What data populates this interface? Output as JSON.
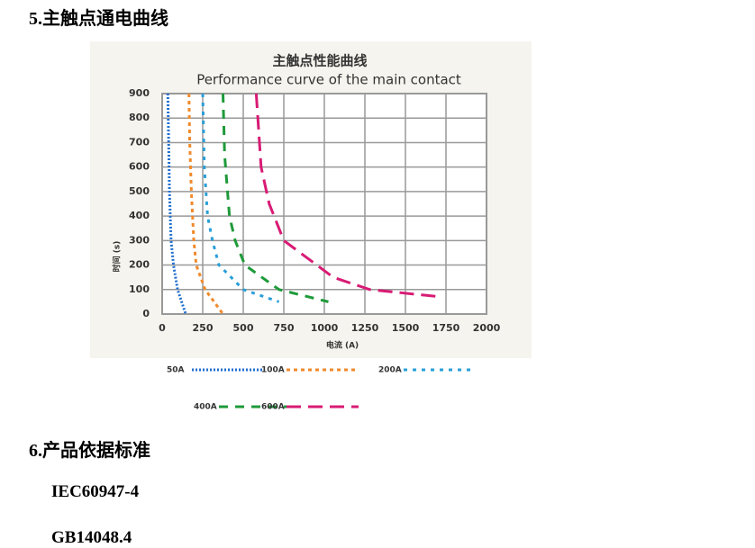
{
  "section5": {
    "heading": "5.主触点通电曲线"
  },
  "figure": {
    "type": "line",
    "title": "主触点性能曲线",
    "subtitle": "Performance curve of the main contact",
    "x_label": "电流 (A)",
    "y_label": "时间 (s)",
    "xlim": [
      0,
      2000
    ],
    "xticks": [
      0,
      250,
      500,
      750,
      1000,
      1250,
      1500,
      1750,
      2000
    ],
    "ylim": [
      0,
      900
    ],
    "yticks": [
      0,
      100,
      200,
      300,
      400,
      500,
      600,
      700,
      800,
      900
    ],
    "grid": true,
    "series": [
      {
        "name": "50A",
        "color": "#1f6fd0",
        "dash": [
          2,
          2
        ],
        "x": [
          35,
          40,
          45,
          55,
          70,
          95,
          145
        ],
        "values": [
          900,
          700,
          500,
          300,
          200,
          100,
          0
        ]
      },
      {
        "name": "100A",
        "color": "#f08a2c",
        "dash": [
          4,
          4
        ],
        "x": [
          165,
          170,
          180,
          195,
          210,
          265,
          375
        ],
        "values": [
          900,
          700,
          500,
          300,
          200,
          100,
          0
        ]
      },
      {
        "name": "200A",
        "color": "#2a9fd8",
        "dash": [
          4,
          6
        ],
        "x": [
          250,
          260,
          280,
          310,
          350,
          500,
          720
        ],
        "values": [
          900,
          600,
          400,
          300,
          200,
          100,
          50
        ]
      },
      {
        "name": "400A",
        "color": "#1e9a3a",
        "dash": [
          10,
          8
        ],
        "x": [
          375,
          385,
          415,
          450,
          510,
          720,
          1025
        ],
        "values": [
          900,
          650,
          400,
          300,
          200,
          100,
          50
        ]
      },
      {
        "name": "600A",
        "color": "#d81b74",
        "dash": [
          16,
          8
        ],
        "x": [
          580,
          590,
          610,
          660,
          750,
          1055,
          1280,
          1720
        ],
        "values": [
          900,
          800,
          600,
          450,
          300,
          150,
          100,
          70
        ]
      }
    ]
  },
  "section6": {
    "heading": "6.产品依据标准",
    "items": [
      "IEC60947-4",
      "GB14048.4"
    ]
  }
}
